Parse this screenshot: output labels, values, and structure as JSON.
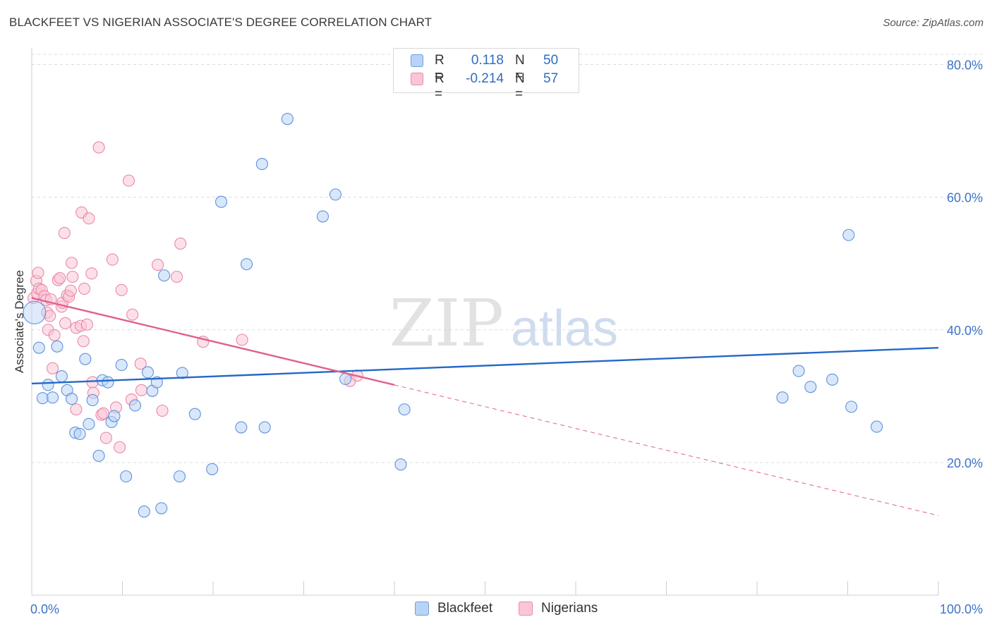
{
  "header": {
    "title": "BLACKFEET VS NIGERIAN ASSOCIATE'S DEGREE CORRELATION CHART",
    "source": "Source: ZipAtlas.com"
  },
  "legend_top": {
    "rows": [
      {
        "r_label": "R =",
        "r_value": "0.118",
        "n_label": "N =",
        "n_value": "50"
      },
      {
        "r_label": "R =",
        "r_value": "-0.214",
        "n_label": "N =",
        "n_value": "57"
      }
    ]
  },
  "watermark": {
    "zip": "ZIP",
    "atlas": "atlas"
  },
  "colors": {
    "blue_fill": "#b9d3f6",
    "blue_stroke": "#5f92dc",
    "blue_line": "#2468c8",
    "pink_fill": "#f9c6d6",
    "pink_stroke": "#e889a8",
    "pink_line": "#e0608e",
    "grid": "#dcdcdc",
    "tick_label": "#3d74c9"
  },
  "chart_data": {
    "type": "scatter",
    "title": "BLACKFEET VS NIGERIAN ASSOCIATE'S DEGREE CORRELATION CHART",
    "xlabel": "",
    "ylabel": "Associate's Degree",
    "xlim": [
      0,
      100
    ],
    "ylim": [
      0,
      82.5
    ],
    "x_tick_labels": [
      "0.0%",
      "100.0%"
    ],
    "y_ticks": [
      20,
      40,
      60,
      80
    ],
    "y_tick_labels": [
      "20.0%",
      "40.0%",
      "60.0%",
      "80.0%"
    ],
    "grid": true,
    "legend_position": "bottom",
    "series": [
      {
        "name": "Blackfeet",
        "R": 0.118,
        "N": 50,
        "trend": {
          "x": [
            0,
            100
          ],
          "y": [
            31.9,
            37.3
          ],
          "dashed_extension": false
        },
        "points": [
          {
            "x": 0.3,
            "y": 42.6
          },
          {
            "x": 0.8,
            "y": 37.3
          },
          {
            "x": 1.2,
            "y": 29.7
          },
          {
            "x": 1.8,
            "y": 31.7
          },
          {
            "x": 2.3,
            "y": 29.8
          },
          {
            "x": 2.8,
            "y": 37.5
          },
          {
            "x": 3.3,
            "y": 33.0
          },
          {
            "x": 3.9,
            "y": 30.9
          },
          {
            "x": 4.4,
            "y": 29.6
          },
          {
            "x": 4.8,
            "y": 24.5
          },
          {
            "x": 5.3,
            "y": 24.3
          },
          {
            "x": 5.9,
            "y": 35.6
          },
          {
            "x": 6.3,
            "y": 25.8
          },
          {
            "x": 6.7,
            "y": 29.4
          },
          {
            "x": 7.4,
            "y": 21.0
          },
          {
            "x": 7.8,
            "y": 32.4
          },
          {
            "x": 8.4,
            "y": 32.1
          },
          {
            "x": 8.8,
            "y": 26.1
          },
          {
            "x": 9.1,
            "y": 27.0
          },
          {
            "x": 9.9,
            "y": 34.7
          },
          {
            "x": 10.4,
            "y": 17.9
          },
          {
            "x": 11.4,
            "y": 28.6
          },
          {
            "x": 12.4,
            "y": 12.6
          },
          {
            "x": 12.8,
            "y": 33.6
          },
          {
            "x": 13.3,
            "y": 30.8
          },
          {
            "x": 13.8,
            "y": 32.1
          },
          {
            "x": 14.3,
            "y": 13.1
          },
          {
            "x": 14.6,
            "y": 48.2
          },
          {
            "x": 16.3,
            "y": 17.9
          },
          {
            "x": 16.6,
            "y": 33.5
          },
          {
            "x": 18.0,
            "y": 27.3
          },
          {
            "x": 19.9,
            "y": 19.0
          },
          {
            "x": 20.9,
            "y": 59.3
          },
          {
            "x": 23.1,
            "y": 25.3
          },
          {
            "x": 23.7,
            "y": 49.9
          },
          {
            "x": 25.4,
            "y": 65.0
          },
          {
            "x": 25.7,
            "y": 25.3
          },
          {
            "x": 28.2,
            "y": 71.8
          },
          {
            "x": 32.1,
            "y": 57.1
          },
          {
            "x": 33.5,
            "y": 60.4
          },
          {
            "x": 34.6,
            "y": 32.6
          },
          {
            "x": 40.7,
            "y": 19.7
          },
          {
            "x": 41.1,
            "y": 28.0
          },
          {
            "x": 82.8,
            "y": 29.8
          },
          {
            "x": 84.6,
            "y": 33.8
          },
          {
            "x": 85.9,
            "y": 31.4
          },
          {
            "x": 88.3,
            "y": 32.5
          },
          {
            "x": 90.1,
            "y": 54.3
          },
          {
            "x": 90.4,
            "y": 28.4
          },
          {
            "x": 93.2,
            "y": 25.4
          }
        ]
      },
      {
        "name": "Nigerians",
        "R": -0.214,
        "N": 57,
        "trend": {
          "x": [
            0,
            40,
            100
          ],
          "y": [
            44.8,
            31.7,
            12.0
          ],
          "solid_until_x": 40,
          "dashed_extension": true
        },
        "points": [
          {
            "x": 0.2,
            "y": 44.8
          },
          {
            "x": 0.5,
            "y": 47.4
          },
          {
            "x": 0.6,
            "y": 45.5
          },
          {
            "x": 0.7,
            "y": 48.6
          },
          {
            "x": 0.8,
            "y": 46.2
          },
          {
            "x": 1.1,
            "y": 46.0
          },
          {
            "x": 1.4,
            "y": 45.1
          },
          {
            "x": 1.6,
            "y": 44.5
          },
          {
            "x": 1.7,
            "y": 42.6
          },
          {
            "x": 1.8,
            "y": 40.0
          },
          {
            "x": 2.0,
            "y": 42.1
          },
          {
            "x": 2.1,
            "y": 44.6
          },
          {
            "x": 2.3,
            "y": 34.2
          },
          {
            "x": 2.5,
            "y": 39.2
          },
          {
            "x": 2.9,
            "y": 47.5
          },
          {
            "x": 3.1,
            "y": 47.8
          },
          {
            "x": 3.3,
            "y": 43.5
          },
          {
            "x": 3.4,
            "y": 44.1
          },
          {
            "x": 3.6,
            "y": 54.6
          },
          {
            "x": 3.7,
            "y": 41.0
          },
          {
            "x": 3.9,
            "y": 45.2
          },
          {
            "x": 4.1,
            "y": 45.0
          },
          {
            "x": 4.3,
            "y": 45.9
          },
          {
            "x": 4.4,
            "y": 50.1
          },
          {
            "x": 4.5,
            "y": 48.0
          },
          {
            "x": 4.9,
            "y": 28.0
          },
          {
            "x": 4.9,
            "y": 40.3
          },
          {
            "x": 5.4,
            "y": 40.6
          },
          {
            "x": 5.5,
            "y": 57.7
          },
          {
            "x": 5.7,
            "y": 38.3
          },
          {
            "x": 5.8,
            "y": 46.2
          },
          {
            "x": 6.1,
            "y": 40.8
          },
          {
            "x": 6.3,
            "y": 56.8
          },
          {
            "x": 6.6,
            "y": 48.5
          },
          {
            "x": 6.7,
            "y": 32.1
          },
          {
            "x": 6.8,
            "y": 30.5
          },
          {
            "x": 7.4,
            "y": 67.5
          },
          {
            "x": 7.7,
            "y": 27.2
          },
          {
            "x": 7.9,
            "y": 27.4
          },
          {
            "x": 8.2,
            "y": 23.7
          },
          {
            "x": 8.9,
            "y": 50.6
          },
          {
            "x": 9.3,
            "y": 28.3
          },
          {
            "x": 9.7,
            "y": 22.3
          },
          {
            "x": 9.9,
            "y": 46.0
          },
          {
            "x": 10.7,
            "y": 62.5
          },
          {
            "x": 11.0,
            "y": 29.5
          },
          {
            "x": 11.1,
            "y": 42.3
          },
          {
            "x": 12.0,
            "y": 34.9
          },
          {
            "x": 12.1,
            "y": 30.9
          },
          {
            "x": 13.9,
            "y": 49.8
          },
          {
            "x": 14.4,
            "y": 27.8
          },
          {
            "x": 16.0,
            "y": 48.0
          },
          {
            "x": 16.4,
            "y": 53.0
          },
          {
            "x": 18.9,
            "y": 38.2
          },
          {
            "x": 23.2,
            "y": 38.5
          },
          {
            "x": 35.1,
            "y": 32.3
          },
          {
            "x": 35.9,
            "y": 33.1
          }
        ]
      }
    ]
  }
}
